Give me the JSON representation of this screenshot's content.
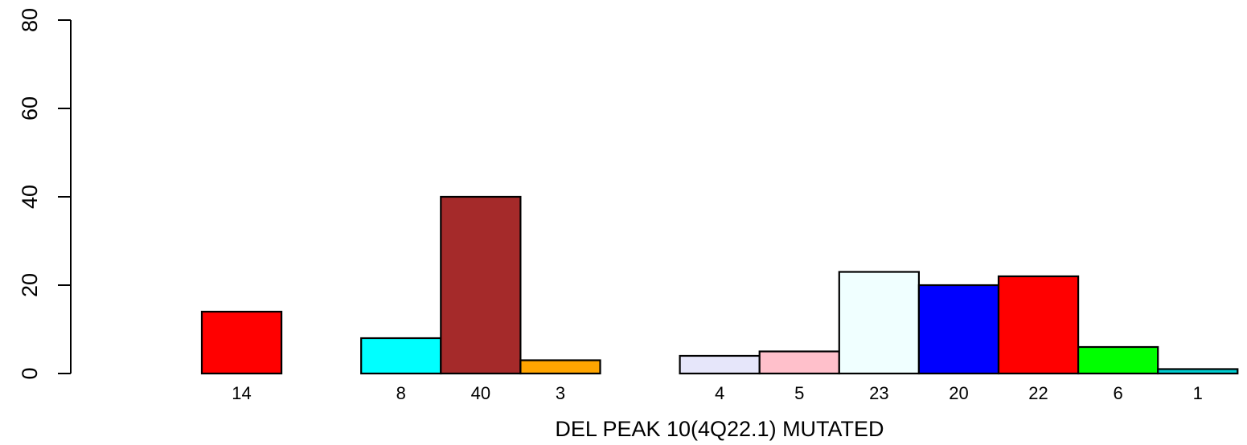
{
  "chart_data": {
    "type": "bar",
    "xlabel": "DEL PEAK 10(4Q22.1) MUTATED",
    "ylabel": "",
    "ylim": [
      0,
      80
    ],
    "yticks": [
      0,
      20,
      40,
      60,
      80
    ],
    "grid": false,
    "legend": "none",
    "categories": [
      "14",
      "",
      "8",
      "40",
      "3",
      "",
      "4",
      "5",
      "23",
      "20",
      "22",
      "6",
      "1"
    ],
    "values": [
      14,
      0,
      8,
      40,
      3,
      0,
      4,
      5,
      23,
      20,
      22,
      6,
      1
    ],
    "colors": [
      "#ff0000",
      "#ffffff",
      "#00ffff",
      "#a52a2a",
      "#ffa500",
      "#ffffff",
      "#e6e6fa",
      "#ffc0cb",
      "#f0ffff",
      "#0000ff",
      "#ff0000",
      "#00ff00",
      "#00ced1"
    ]
  }
}
